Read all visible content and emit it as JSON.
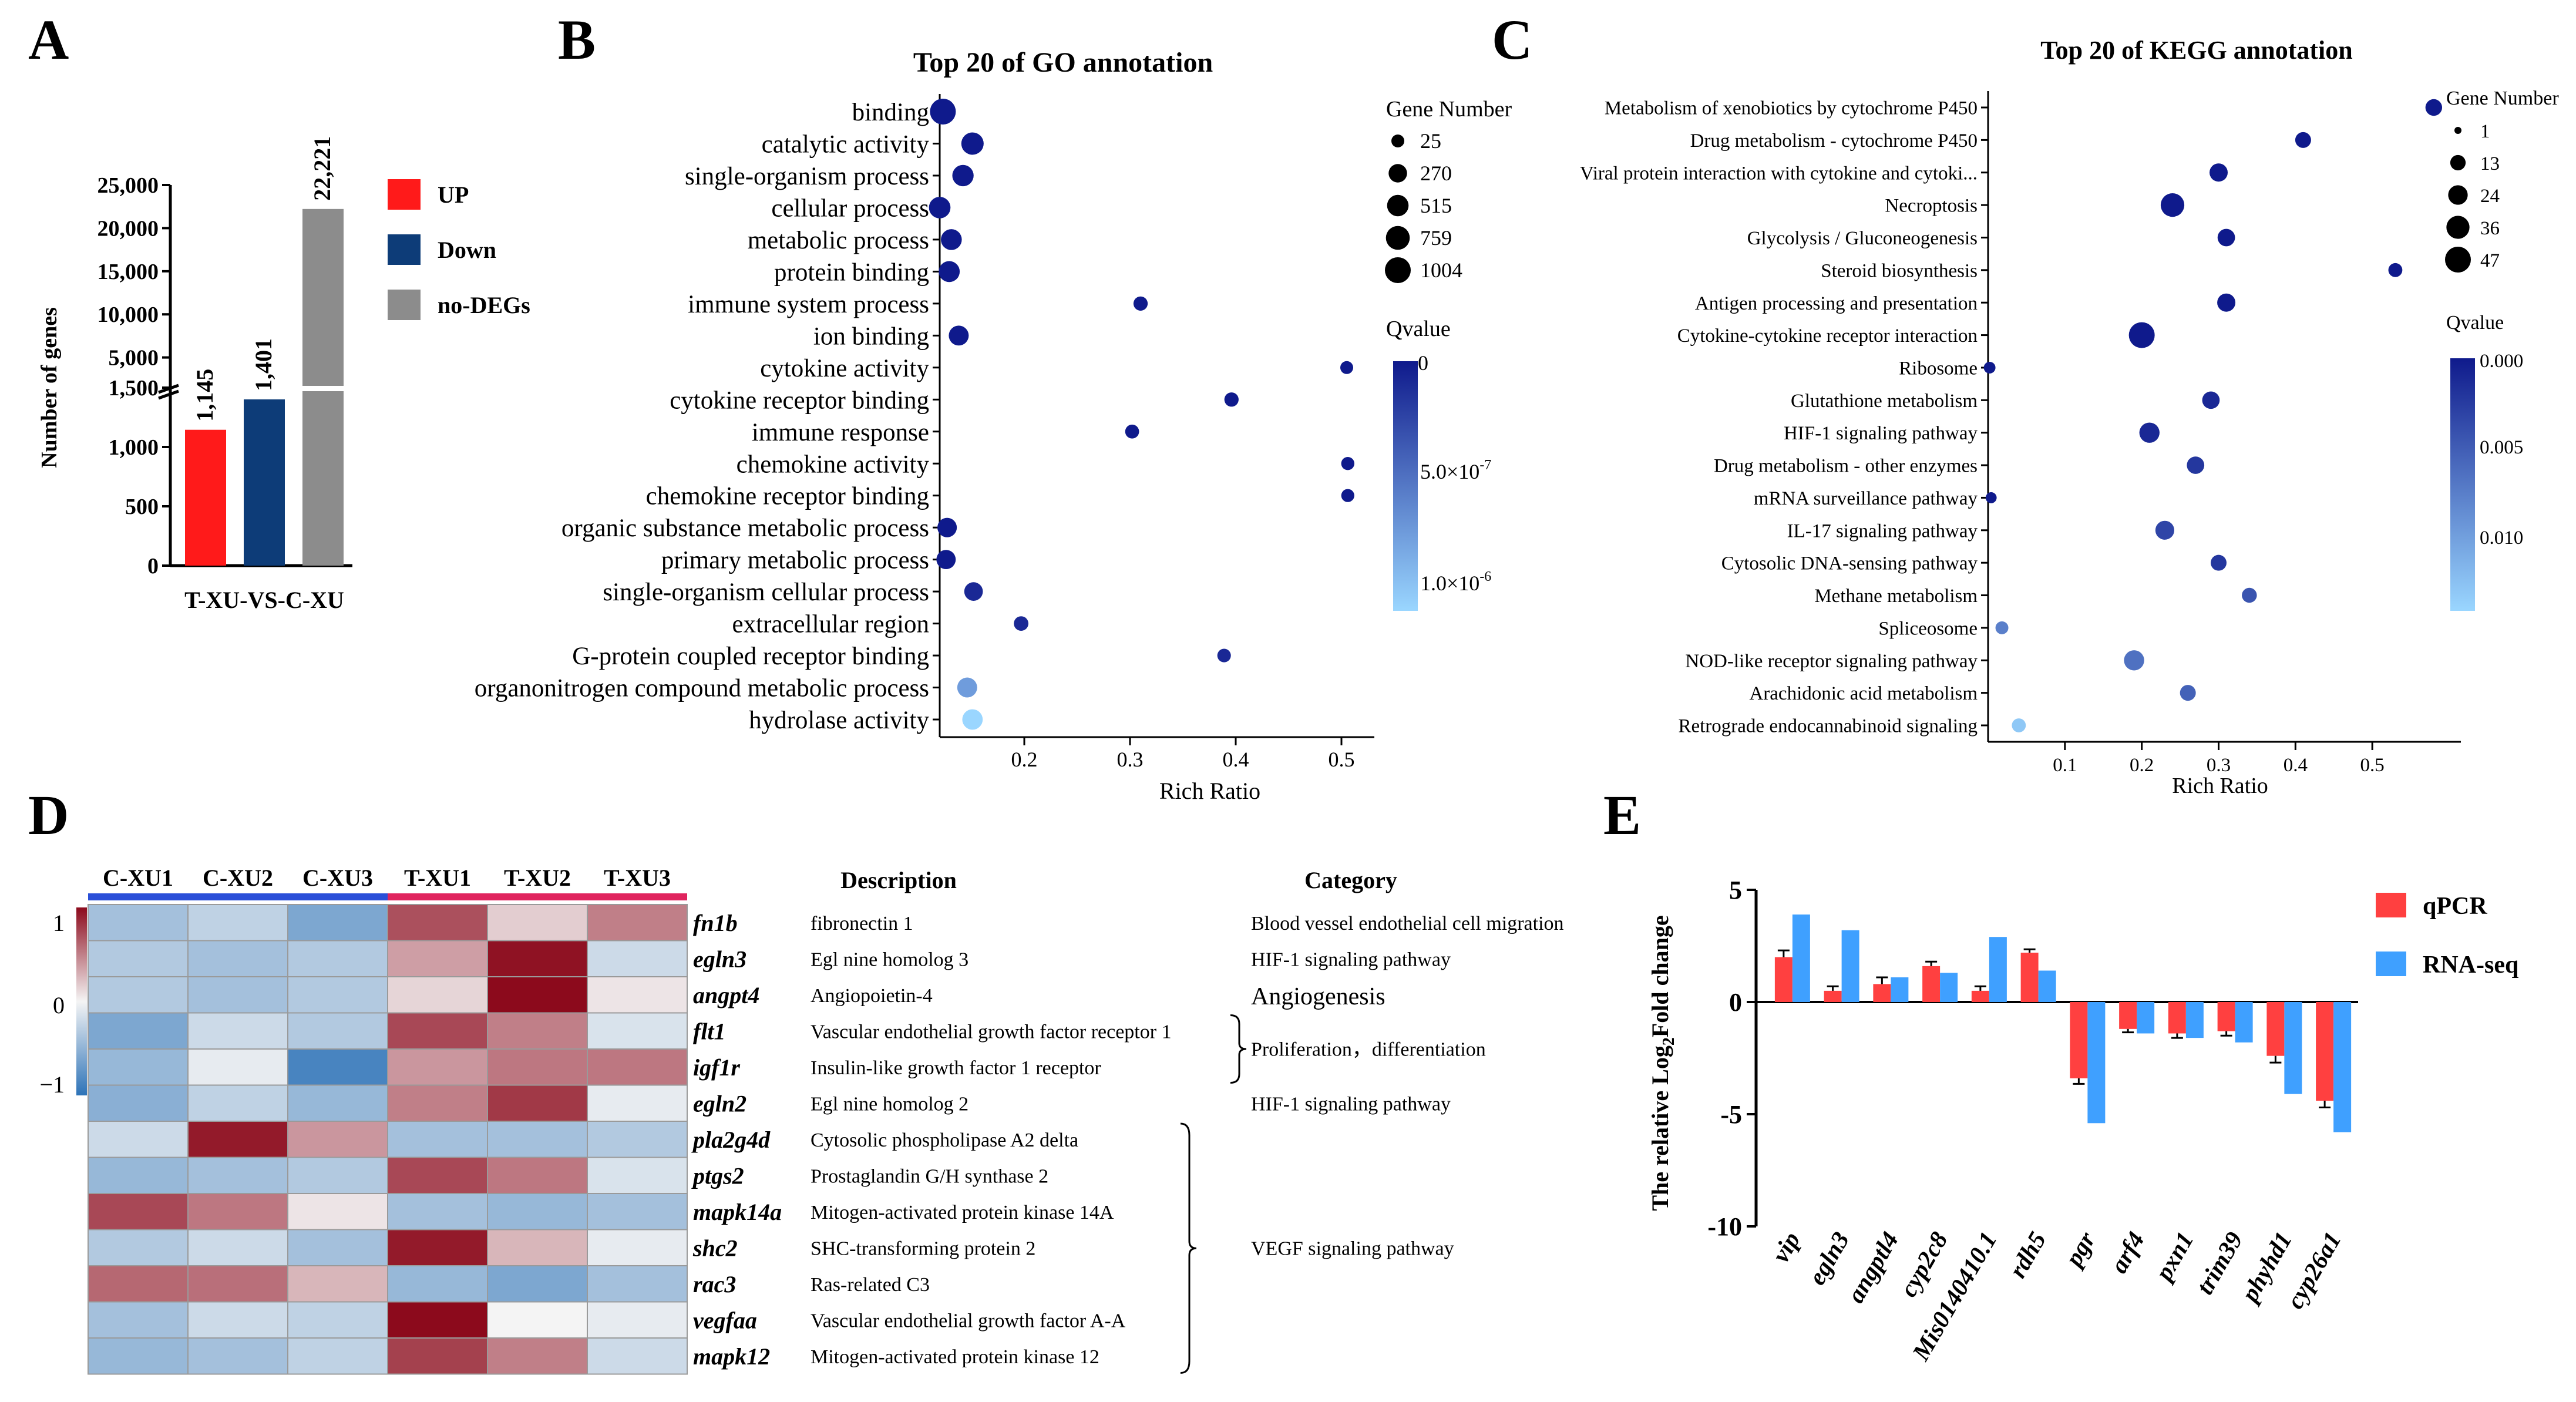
{
  "panels": {
    "A": "A",
    "B": "B",
    "C": "C",
    "D": "D",
    "E": "E"
  },
  "colors": {
    "up": "#ff1a1a",
    "down": "#0d3c78",
    "nodeg": "#8c8c8c",
    "qpcr": "#ff4040",
    "rnaseq": "#3fa0ff",
    "dot_dark": "#0f1a8c",
    "dot_light": "#9ad6ff"
  },
  "chart_data": [
    {
      "id": "A",
      "type": "bar",
      "title": "",
      "ylabel": "Number of genes",
      "xlabel": "T-XU-VS-C-XU",
      "categories": [
        "UP",
        "Down",
        "no-DEGs"
      ],
      "values": [
        1145,
        1401,
        22221
      ],
      "value_labels": [
        "1,145",
        "1,401",
        "22,221"
      ],
      "legend": [
        "UP",
        "Down",
        "no-DEGs"
      ],
      "axis_break": {
        "lower_range": [
          0,
          1500
        ],
        "upper_range": [
          1500,
          25000
        ]
      },
      "lower_ticks": [
        "0",
        "500",
        "1,000",
        "1,500"
      ],
      "upper_ticks": [
        "5,000",
        "10,000",
        "15,000",
        "20,000",
        "25,000"
      ]
    },
    {
      "id": "B",
      "type": "scatter",
      "title": "Top 20 of GO annotation",
      "xlabel": "Rich Ratio",
      "xlim": [
        0.12,
        0.52
      ],
      "xticks": [
        "0.2",
        "0.3",
        "0.4",
        "0.5"
      ],
      "size_legend_title": "Gene Number",
      "size_legend": [
        "25",
        "270",
        "515",
        "759",
        "1004"
      ],
      "color_legend_title": "Qvalue",
      "color_legend": [
        "0",
        "5.0×10",
        "-7",
        "1.0×10",
        "-6"
      ],
      "terms": [
        "binding",
        "catalytic activity",
        "single-organism process",
        "cellular process",
        "metabolic process",
        "protein binding",
        "immune system process",
        "ion binding",
        "cytokine activity",
        "cytokine receptor binding",
        "immune response",
        "chemokine activity",
        "chemokine receptor binding",
        "organic substance metabolic process",
        "primary metabolic process",
        "single-organism cellular process",
        "extracellular region",
        "G-protein coupled receptor binding",
        "organonitrogen compound metabolic process",
        "hydrolase activity"
      ],
      "rich_ratio": [
        0.123,
        0.151,
        0.142,
        0.12,
        0.131,
        0.129,
        0.31,
        0.138,
        0.505,
        0.396,
        0.302,
        0.506,
        0.506,
        0.127,
        0.126,
        0.152,
        0.197,
        0.389,
        0.146,
        0.151
      ],
      "gene_number": [
        1004,
        600,
        500,
        520,
        460,
        470,
        60,
        380,
        25,
        60,
        50,
        30,
        28,
        340,
        330,
        280,
        70,
        40,
        380,
        420
      ],
      "qvalue": [
        0,
        0,
        0,
        0,
        0,
        0,
        0,
        0,
        0,
        0,
        0,
        0,
        0,
        0,
        0,
        1e-07,
        1e-07,
        1e-07,
        9e-07,
        1.3e-06
      ]
    },
    {
      "id": "C",
      "type": "scatter",
      "title": "Top 20 of KEGG annotation",
      "xlabel": "Rich Ratio",
      "xlim": [
        0,
        0.6
      ],
      "xticks": [
        "0.1",
        "0.2",
        "0.3",
        "0.4",
        "0.5"
      ],
      "size_legend_title": "Gene Number",
      "size_legend": [
        "1",
        "13",
        "24",
        "36",
        "47"
      ],
      "color_legend_title": "Qvalue",
      "color_legend": [
        "0.000",
        "0.005",
        "0.010"
      ],
      "terms": [
        "Metabolism of xenobiotics by cytochrome P450",
        "Drug metabolism - cytochrome P450",
        "Viral protein interaction with cytokine and cytoki...",
        "Necroptosis",
        "Glycolysis / Gluconeogenesis",
        "Steroid biosynthesis",
        "Antigen processing and presentation",
        "Cytokine-cytokine receptor interaction",
        "Ribosome",
        "Glutathione metabolism",
        "HIF-1 signaling pathway",
        "Drug metabolism - other enzymes",
        "mRNA surveillance pathway",
        "IL-17 signaling pathway",
        "Cytosolic DNA-sensing pathway",
        "Methane metabolism",
        "Spliceosome",
        "NOD-like receptor signaling pathway",
        "Arachidonic acid metabolism",
        "Retrograde endocannabinoid signaling"
      ],
      "rich_ratio": [
        0.58,
        0.41,
        0.3,
        0.24,
        0.31,
        0.53,
        0.31,
        0.2,
        0.002,
        0.29,
        0.21,
        0.27,
        0.004,
        0.23,
        0.3,
        0.34,
        0.018,
        0.19,
        0.26,
        0.04
      ],
      "gene_number": [
        16,
        14,
        20,
        38,
        18,
        10,
        20,
        47,
        6,
        18,
        26,
        18,
        5,
        22,
        14,
        12,
        8,
        26,
        14,
        10
      ],
      "qvalue": [
        0,
        0,
        0,
        0,
        0,
        0,
        0,
        0,
        0,
        0.001,
        0.001,
        0.002,
        0.0,
        0.003,
        0.002,
        0.004,
        0.007,
        0.006,
        0.005,
        0.012
      ]
    },
    {
      "id": "D",
      "type": "heatmap",
      "columns": [
        "C-XU1",
        "C-XU2",
        "C-XU3",
        "T-XU1",
        "T-XU2",
        "T-XU3"
      ],
      "genes": [
        "fn1b",
        "egln3",
        "angpt4",
        "flt1",
        "igf1r",
        "egln2",
        "pla2g4d",
        "ptgs2",
        "mapk14a",
        "shc2",
        "rac3",
        "vegfaa",
        "mapk12"
      ],
      "descriptions": [
        "fibronectin 1",
        "Egl nine homolog 3",
        "Angiopoietin-4",
        "Vascular endothelial growth factor receptor 1",
        "Insulin-like growth factor 1 receptor",
        "Egl nine homolog 2",
        "Cytosolic phospholipase A2 delta",
        "Prostaglandin G/H synthase 2",
        "Mitogen-activated protein kinase 14A",
        "SHC-transforming protein 2",
        "Ras-related C3",
        "Vascular endothelial growth factor A-A",
        "Mitogen-activated protein kinase 12"
      ],
      "values": [
        [
          -0.6,
          -0.4,
          -0.9,
          1.05,
          0.25,
          0.75
        ],
        [
          -0.5,
          -0.6,
          -0.5,
          0.55,
          1.45,
          -0.3
        ],
        [
          -0.5,
          -0.6,
          -0.5,
          0.2,
          1.5,
          0.1
        ],
        [
          -0.9,
          -0.3,
          -0.5,
          1.1,
          0.75,
          -0.2
        ],
        [
          -0.7,
          -0.1,
          -1.3,
          0.6,
          0.8,
          0.8
        ],
        [
          -0.8,
          -0.4,
          -0.7,
          0.75,
          1.2,
          -0.1
        ],
        [
          -0.3,
          1.4,
          0.6,
          -0.6,
          -0.6,
          -0.5
        ],
        [
          -0.7,
          -0.6,
          -0.5,
          1.1,
          0.8,
          -0.2
        ],
        [
          1.1,
          0.8,
          0.1,
          -0.6,
          -0.7,
          -0.6
        ],
        [
          -0.5,
          -0.3,
          -0.6,
          1.4,
          0.4,
          -0.1
        ],
        [
          0.9,
          0.85,
          0.4,
          -0.7,
          -0.9,
          -0.6
        ],
        [
          -0.6,
          -0.3,
          -0.4,
          1.55,
          0.0,
          -0.1
        ],
        [
          -0.7,
          -0.6,
          -0.4,
          1.15,
          0.75,
          -0.3
        ]
      ],
      "colorbar_ticks": [
        "1",
        "0",
        "−1"
      ],
      "desc_header": "Description",
      "cat_header": "Category",
      "categories": [
        "Blood vessel endothelial cell migration",
        "HIF-1 signaling pathway",
        "Angiogenesis",
        "Proliferation，differentiation",
        "HIF-1 signaling pathway",
        "VEGF signaling pathway"
      ]
    },
    {
      "id": "E",
      "type": "bar",
      "ylabel_main": "The relative Log",
      "ylabel_sub": "2",
      "ylabel_tail": "Fold change",
      "categories": [
        "vip",
        "egln3",
        "angptl4",
        "cyp2c8",
        "Mis0140410.1",
        "rdh5",
        "pgr",
        "arf4",
        "pxn1",
        "trim39",
        "phyhd1",
        "cyp26a1"
      ],
      "series": [
        {
          "name": "qPCR",
          "values": [
            2.0,
            0.5,
            0.8,
            1.6,
            0.5,
            2.2,
            -3.4,
            -1.2,
            -1.4,
            -1.3,
            -2.4,
            -4.4
          ],
          "errors": [
            0.3,
            0.2,
            0.3,
            0.2,
            0.2,
            0.15,
            0.25,
            0.15,
            0.2,
            0.2,
            0.3,
            0.3
          ]
        },
        {
          "name": "RNA-seq",
          "values": [
            3.9,
            3.2,
            1.1,
            1.3,
            2.9,
            1.4,
            -5.4,
            -1.4,
            -1.6,
            -1.8,
            -4.1,
            -5.8
          ]
        }
      ],
      "ylim": [
        -10,
        5
      ],
      "yticks": [
        "5",
        "0",
        "-5",
        "-10"
      ]
    }
  ]
}
